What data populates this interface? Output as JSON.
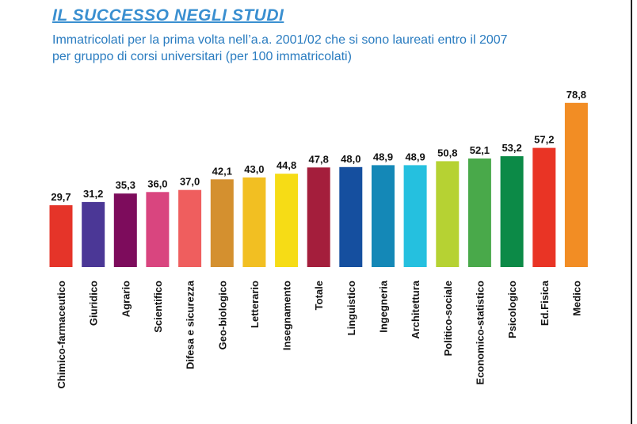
{
  "header": {
    "title": "IL SUCCESSO NEGLI STUDI",
    "subtitle_line1": "Immatricolati per la prima volta nell’a.a. 2001/02 che si sono laureati entro il 2007",
    "subtitle_line2": "per gruppo di corsi universitari (per 100 immatricolati)"
  },
  "chart_data": {
    "type": "bar",
    "title": "IL SUCCESSO NEGLI STUDI",
    "xlabel": "",
    "ylabel": "",
    "ylim": [
      0,
      80
    ],
    "grid": false,
    "legend": "none",
    "categories": [
      "Chimico-farmaceutico",
      "Giuridico",
      "Agrario",
      "Scientifico",
      "Difesa e sicurezza",
      "Geo-biologico",
      "Letterario",
      "Insegnamento",
      "Totale",
      "Linguistico",
      "Ingegneria",
      "Architettura",
      "Politico-sociale",
      "Economico-statistico",
      "Psicologico",
      "Ed.Fisica",
      "Medico"
    ],
    "values": [
      29.7,
      31.2,
      35.3,
      36.0,
      37.0,
      42.1,
      43.0,
      44.8,
      47.8,
      48.0,
      48.9,
      48.9,
      50.8,
      52.1,
      53.2,
      57.2,
      78.8
    ],
    "value_labels": [
      "29,7",
      "31,2",
      "35,3",
      "36,0",
      "37,0",
      "42,1",
      "43,0",
      "44,8",
      "47,8",
      "48,0",
      "48,9",
      "48,9",
      "50,8",
      "52,1",
      "53,2",
      "57,2",
      "78,8"
    ],
    "colors": [
      "#e53429",
      "#4b3796",
      "#7d0c5c",
      "#d9457f",
      "#ef5e5e",
      "#d4902f",
      "#f2bf22",
      "#f6dc16",
      "#a41e3c",
      "#154f9f",
      "#1488b7",
      "#25c0df",
      "#b6d233",
      "#49a94a",
      "#0c8a47",
      "#e93425",
      "#f28d24"
    ],
    "highlight_category": "Totale",
    "highlight_color": "#a41e3c"
  }
}
